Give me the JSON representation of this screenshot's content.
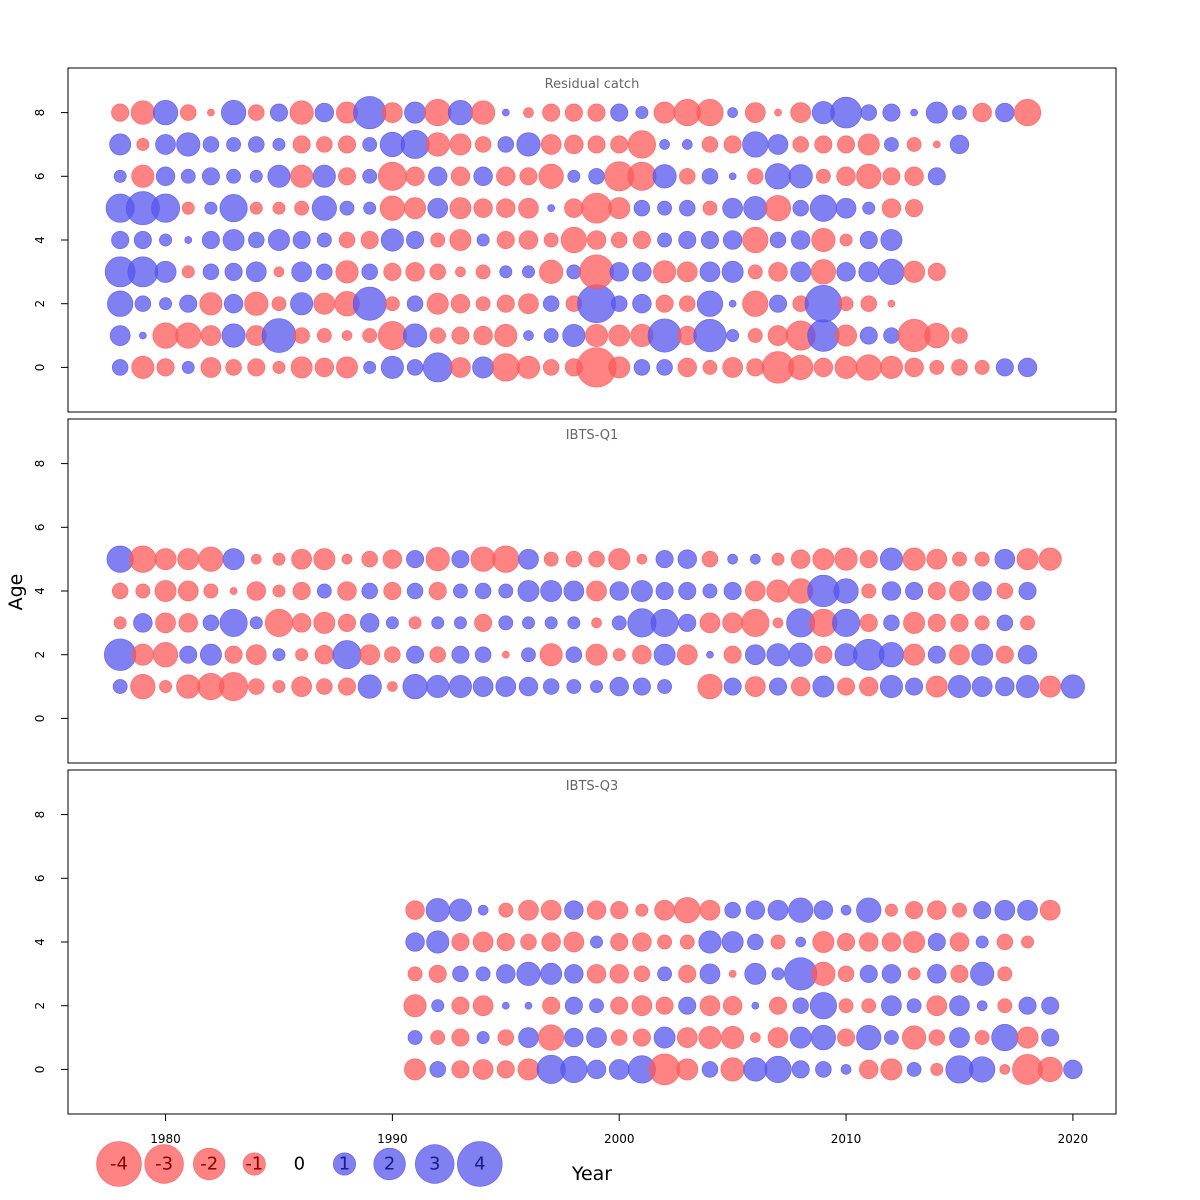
{
  "chart_data": {
    "type": "scatter",
    "subtype": "bubble-residuals",
    "xlabel": "Year",
    "ylabel": "Age",
    "xlim": [
      1975.7,
      2021.9
    ],
    "x_ticks": [
      1980,
      1990,
      2000,
      2010,
      2020
    ],
    "y_ticks": [
      0,
      2,
      4,
      6,
      8
    ],
    "ylim": [
      -1.4,
      9.4
    ],
    "colors": {
      "positive": "#5555ee",
      "negative": "#ff5a5a"
    },
    "grid": false,
    "legend": {
      "position": "bottom-left",
      "values": [
        -4,
        -3,
        -2,
        -1,
        0,
        1,
        2,
        3,
        4
      ],
      "labels": [
        "-4",
        "-3",
        "-2",
        "-1",
        "0",
        "1",
        "2",
        "3",
        "4"
      ]
    },
    "panels": [
      {
        "title": "Residual catch",
        "years": [
          1978,
          2018
        ],
        "ages": [
          0,
          1,
          2,
          3,
          4,
          5,
          6,
          7,
          8
        ],
        "residuals": [
          [
            0.5,
            -1.0,
            -0.6,
            0.3,
            -0.8,
            -0.5,
            -0.6,
            -0.3,
            -0.9,
            -0.7,
            -0.9,
            0.3,
            1.0,
            0.5,
            1.7,
            -0.8,
            0.9,
            -1.5,
            -1.0,
            -0.5,
            -0.6,
            -3.1,
            -0.9,
            0.5,
            0.5,
            -0.7,
            -0.4,
            -0.8,
            -0.6,
            -2.0,
            -1.2,
            -0.7,
            -1.0,
            -1.3,
            -1.0,
            -0.7,
            -0.4,
            -0.5,
            -0.4,
            0.6,
            0.7
          ],
          [
            0.8,
            0.1,
            -1.3,
            -1.3,
            -0.8,
            1.1,
            -0.8,
            2.3,
            -0.5,
            -0.4,
            -0.2,
            -0.4,
            -1.6,
            1.1,
            -0.5,
            -0.6,
            -0.7,
            -1.0,
            0.2,
            0.4,
            1.0,
            -1.0,
            -0.9,
            -1.0,
            2.2,
            -0.7,
            2.1,
            0.3,
            -0.4,
            -0.8,
            -1.7,
            2.0,
            -0.9,
            0.6,
            0.5,
            -2.1,
            -1.2,
            -0.5
          ],
          [
            1.3,
            0.5,
            0.3,
            0.6,
            -1.0,
            0.7,
            -1.1,
            -0.4,
            1.0,
            -0.9,
            -1.2,
            2.2,
            -0.4,
            0.5,
            -0.9,
            -0.7,
            -0.4,
            -0.6,
            -0.8,
            0.5,
            -0.5,
            2.9,
            0.5,
            0.7,
            -0.6,
            -0.5,
            1.3,
            0.1,
            -1.3,
            0.6,
            -0.5,
            2.7,
            -0.4,
            -0.5,
            -0.1
          ],
          [
            1.8,
            1.8,
            0.9,
            -0.3,
            0.5,
            0.6,
            0.8,
            -0.2,
            0.8,
            0.5,
            -1.0,
            0.5,
            -0.6,
            -0.7,
            -0.5,
            -0.2,
            -0.4,
            0.3,
            0.3,
            -1.1,
            0.4,
            -2.3,
            0.7,
            0.7,
            -1.0,
            -0.8,
            0.8,
            0.9,
            -0.4,
            -0.7,
            0.8,
            -1.2,
            0.7,
            0.8,
            1.3,
            -0.9,
            -0.6
          ],
          [
            0.6,
            0.6,
            0.3,
            0.1,
            0.6,
            0.9,
            0.5,
            0.9,
            0.6,
            0.4,
            -0.5,
            -0.6,
            1.0,
            0.6,
            -0.4,
            -0.9,
            0.3,
            -0.6,
            -0.7,
            -0.4,
            -1.3,
            -0.7,
            -0.5,
            -0.6,
            0.4,
            0.6,
            0.6,
            0.7,
            -1.3,
            0.5,
            0.7,
            -1.1,
            -0.3,
            0.6,
            0.9
          ],
          [
            1.6,
            2.2,
            1.6,
            -0.3,
            0.3,
            1.5,
            -0.3,
            -0.3,
            -0.4,
            1.2,
            0.4,
            0.3,
            -1.2,
            -0.9,
            0.8,
            -0.9,
            -0.7,
            -0.7,
            -0.8,
            0.1,
            -0.7,
            -1.8,
            -0.9,
            0.5,
            0.4,
            0.5,
            -0.4,
            0.8,
            1.1,
            -1.3,
            0.5,
            1.4,
            0.8,
            0.3,
            -0.7,
            -0.6
          ],
          [
            0.3,
            -1.0,
            0.7,
            0.4,
            0.6,
            0.4,
            0.3,
            1.0,
            -1.0,
            1.0,
            -0.6,
            0.4,
            -1.6,
            -0.7,
            0.7,
            -0.7,
            0.7,
            -0.7,
            -0.6,
            -1.2,
            0.3,
            0.5,
            -1.7,
            -1.6,
            1.1,
            -0.5,
            0.5,
            0.1,
            -0.5,
            1.3,
            1.1,
            -0.4,
            -0.7,
            -1.2,
            -0.6,
            -0.7,
            0.6
          ],
          [
            0.9,
            -0.3,
            0.8,
            1.1,
            0.5,
            0.4,
            0.5,
            0.3,
            -0.6,
            -0.5,
            -0.6,
            0.4,
            1.2,
            1.6,
            -1.1,
            -0.9,
            -0.5,
            0.5,
            1.1,
            -0.8,
            -0.7,
            -0.6,
            -0.6,
            -1.5,
            0.2,
            0.2,
            -0.5,
            -0.6,
            1.3,
            0.8,
            -0.5,
            -0.6,
            -0.6,
            -0.9,
            0.4,
            -0.4,
            -0.1,
            0.7
          ],
          [
            -0.6,
            -1.1,
            1.2,
            -0.5,
            -0.1,
            1.2,
            -0.5,
            0.6,
            -1.1,
            0.7,
            -0.9,
            2.1,
            -0.8,
            0.9,
            -1.4,
            1.2,
            -1.1,
            0.1,
            -0.2,
            -0.6,
            -0.6,
            -0.6,
            0.6,
            0.3,
            -0.9,
            -1.4,
            -1.4,
            0.2,
            -0.8,
            -0.1,
            -0.8,
            1.0,
            1.9,
            0.5,
            0.6,
            0.1,
            0.9,
            0.4,
            -0.7,
            0.7,
            -1.4
          ]
        ]
      },
      {
        "title": "IBTS-Q1",
        "years": [
          1978,
          2019
        ],
        "ages": [
          1,
          2,
          3,
          4,
          5
        ],
        "residuals": [
          [
            0.4,
            -1.2,
            -0.3,
            -1.1,
            -1.4,
            -1.6,
            -0.5,
            -0.3,
            -0.8,
            -0.5,
            -0.6,
            1.1,
            -0.2,
            1.2,
            1.0,
            1.0,
            0.8,
            0.8,
            0.7,
            0.5,
            0.4,
            0.3,
            0.7,
            0.6,
            0.4,
            0.0,
            -1.2,
            0.6,
            -0.8,
            0.6,
            -0.7,
            0.9,
            -0.6,
            -0.7,
            1.0,
            0.6,
            -0.9,
            1.0,
            0.8,
            0.7,
            1.0,
            -0.9,
            1.1
          ],
          [
            2.0,
            -0.9,
            -1.2,
            0.6,
            0.9,
            -0.6,
            -0.8,
            0.3,
            -0.3,
            -0.7,
            1.6,
            -0.8,
            -0.5,
            0.6,
            -0.5,
            0.6,
            0.5,
            -0.1,
            0.4,
            -1.0,
            0.5,
            -0.9,
            -0.3,
            -0.7,
            0.9,
            -0.8,
            0.1,
            -0.6,
            0.8,
            1.0,
            1.1,
            -0.6,
            1.0,
            1.9,
            1.2,
            -0.9,
            0.6,
            -0.8,
            0.9,
            -0.6,
            0.7
          ],
          [
            -0.3,
            0.7,
            -0.8,
            -0.7,
            0.5,
            1.5,
            0.3,
            -1.5,
            -0.7,
            -0.9,
            -0.6,
            0.7,
            0.3,
            -0.3,
            0.3,
            0.3,
            -0.6,
            0.4,
            0.3,
            0.3,
            0.3,
            -0.2,
            0.4,
            1.6,
            1.5,
            0.6,
            -0.8,
            -0.8,
            -1.5,
            -0.2,
            1.6,
            -1.5,
            1.5,
            -0.6,
            0.5,
            -0.9,
            -0.6,
            -0.6,
            -0.4,
            0.5,
            -0.4
          ],
          [
            -0.5,
            -0.4,
            -0.9,
            -0.8,
            -0.4,
            -0.1,
            -0.7,
            -0.3,
            -0.6,
            0.4,
            -0.7,
            0.5,
            -0.6,
            0.5,
            -0.6,
            0.4,
            0.5,
            0.4,
            0.9,
            0.9,
            0.8,
            -0.8,
            0.7,
            0.9,
            0.6,
            0.6,
            0.4,
            0.6,
            -0.8,
            -1.0,
            -1.2,
            2.0,
            1.2,
            -0.4,
            0.7,
            0.6,
            -0.6,
            -0.8,
            0.7,
            -0.5,
            0.6
          ],
          [
            1.4,
            -1.4,
            -0.9,
            -0.9,
            -1.2,
            0.9,
            -0.2,
            -0.3,
            -0.8,
            -0.9,
            -0.2,
            -0.5,
            -0.7,
            0.6,
            -1.1,
            0.6,
            -1.2,
            -1.4,
            0.8,
            -0.4,
            -0.5,
            -0.5,
            -0.9,
            -0.2,
            0.6,
            0.7,
            -0.5,
            0.2,
            0.2,
            -0.3,
            -0.7,
            -0.9,
            -1.0,
            -0.6,
            1.0,
            -1.0,
            -0.8,
            -0.4,
            -0.4,
            0.8,
            -0.9,
            -1.0
          ]
        ]
      },
      {
        "title": "IBTS-Q3",
        "years": [
          1991,
          2019
        ],
        "ages": [
          0,
          1,
          2,
          3,
          4,
          5
        ],
        "residuals": [
          [
            -0.9,
            0.5,
            -0.6,
            -0.8,
            -0.6,
            -0.9,
            1.6,
            1.4,
            0.7,
            0.8,
            1.5,
            -1.9,
            -0.9,
            0.5,
            -1.1,
            1.1,
            1.4,
            0.6,
            0.5,
            0.2,
            -0.7,
            -0.9,
            0.4,
            -0.3,
            1.5,
            1.3,
            -0.2,
            -1.8,
            -1.2,
            0.7
          ],
          [
            0.4,
            -0.4,
            -0.6,
            0.3,
            -0.5,
            0.8,
            -1.3,
            0.7,
            0.8,
            -0.5,
            -0.6,
            0.9,
            -0.8,
            -1.0,
            -1.0,
            -0.2,
            -0.8,
            0.9,
            1.2,
            -0.6,
            1.2,
            0.4,
            -1.1,
            -0.5,
            0.8,
            -0.4,
            1.4,
            -0.9,
            0.6
          ],
          [
            -1.0,
            0.3,
            -0.6,
            -0.8,
            0.1,
            0.1,
            -0.6,
            0.6,
            0.4,
            -0.6,
            -0.8,
            -0.6,
            0.6,
            -0.8,
            -0.7,
            0.1,
            -0.6,
            0.5,
            1.4,
            -0.4,
            -0.4,
            0.8,
            0.4,
            -0.8,
            0.8,
            0.2,
            -0.4,
            0.6,
            0.6
          ],
          [
            -0.4,
            -0.6,
            0.5,
            0.4,
            0.7,
            1.1,
            0.9,
            0.7,
            -0.7,
            -0.7,
            -0.5,
            0.4,
            -0.6,
            0.8,
            -0.1,
            0.9,
            0.3,
            2.1,
            -1.1,
            -0.5,
            0.6,
            0.7,
            -0.3,
            0.7,
            -0.6,
            1.1,
            -0.4
          ],
          [
            0.7,
            1.0,
            -0.6,
            -0.8,
            -0.6,
            -0.5,
            -0.7,
            -0.8,
            0.3,
            -0.6,
            -0.7,
            -0.4,
            -0.4,
            1.0,
            0.9,
            0.5,
            -0.4,
            0.2,
            -0.9,
            -0.6,
            -0.7,
            -0.7,
            -0.9,
            0.6,
            -0.7,
            0.3,
            -0.5,
            -0.3
          ],
          [
            -0.7,
            1.1,
            1.0,
            0.2,
            -0.4,
            -0.8,
            -0.8,
            0.7,
            -0.7,
            -0.6,
            -0.3,
            -0.8,
            -1.3,
            -0.8,
            0.5,
            0.7,
            0.8,
            1.2,
            0.7,
            0.2,
            1.2,
            -0.3,
            -0.6,
            -0.7,
            -0.4,
            0.6,
            0.8,
            0.8,
            -0.8
          ]
        ]
      }
    ]
  }
}
